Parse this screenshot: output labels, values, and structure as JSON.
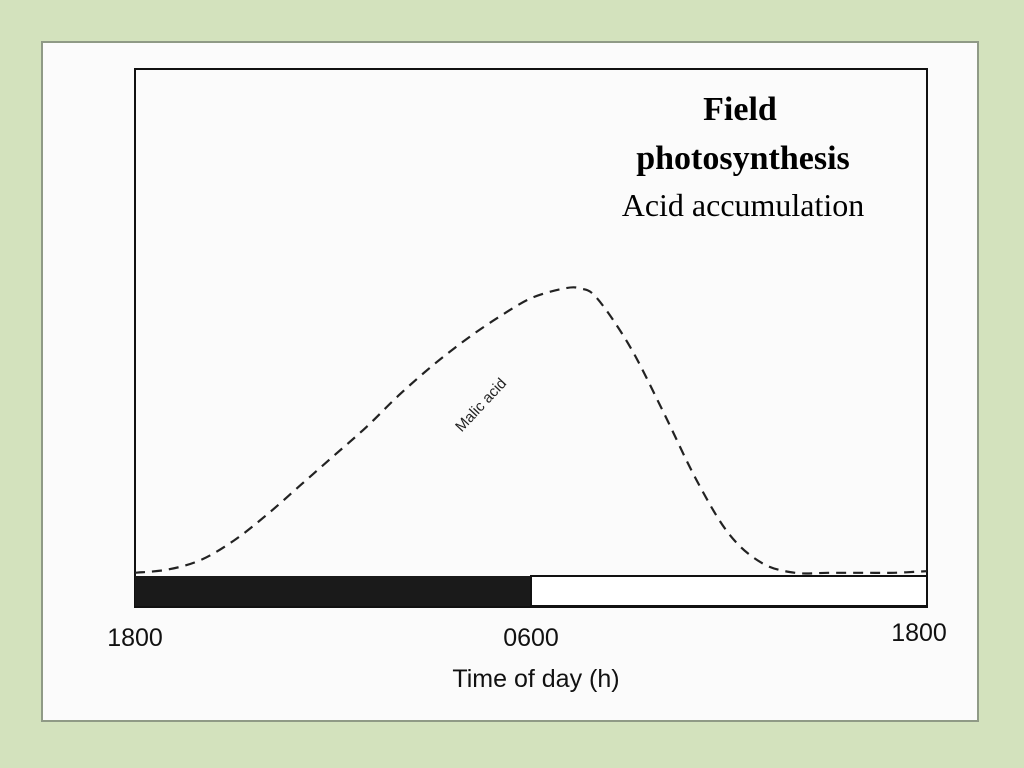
{
  "chart_data": {
    "type": "line",
    "title_lines": [
      "Field",
      "photosynthesis"
    ],
    "subtitle": "Acid accumulation",
    "xlabel": "Time of day (h)",
    "ylabel": "",
    "x_tick_labels": [
      "1800",
      "0600",
      "1800"
    ],
    "xlim": [
      0,
      24
    ],
    "ylim": [
      0,
      100
    ],
    "grid": false,
    "photoperiod_bar": {
      "dark": [
        0,
        12
      ],
      "light": [
        12,
        24
      ]
    },
    "series": [
      {
        "name": "Malic acid",
        "style": "dashed",
        "x": [
          0,
          1,
          2,
          3,
          4,
          5,
          6,
          7,
          8,
          9,
          10,
          11,
          12,
          13,
          13.5,
          14,
          15,
          16,
          17,
          18,
          19,
          20,
          21,
          22,
          23,
          24
        ],
        "y": [
          1,
          2,
          5,
          11,
          19,
          28,
          37,
          46,
          56,
          65,
          73,
          80,
          86,
          89,
          89,
          86,
          71,
          51,
          30,
          13,
          4,
          1,
          1,
          1,
          1,
          1.5
        ]
      }
    ]
  },
  "colors": {
    "background": "#d3e2bd",
    "dark_period": "#1a1a1a",
    "curve": "#222222"
  }
}
